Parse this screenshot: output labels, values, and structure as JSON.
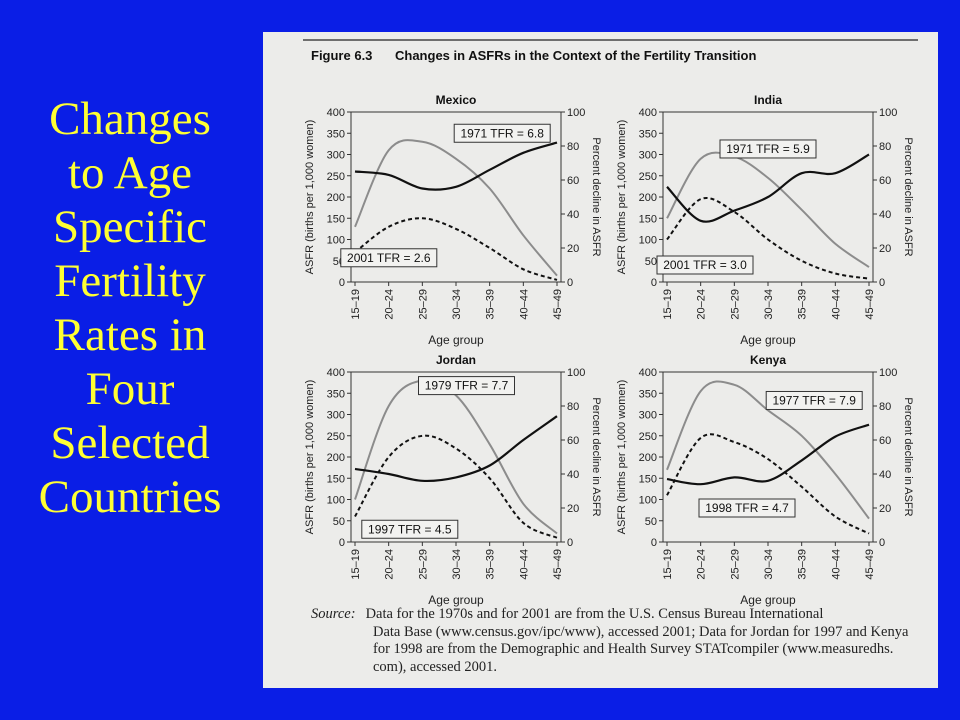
{
  "slide_title_lines": [
    "Changes",
    "to Age",
    "Specific",
    "Fertility",
    "Rates in",
    "Four",
    "Selected",
    "Countries"
  ],
  "figure": {
    "number": "Figure 6.3",
    "caption": "Changes in ASFRs in the Context of the Fertility Transition",
    "source_label": "Source:",
    "source_lines": [
      "Data for the 1970s and for 2001 are from the U.S. Census Bureau International",
      "Data Base (www.census.gov/ipc/www), accessed 2001; Data for Jordan for 1997 and Kenya",
      "for 1998 are from the Demographic and Health Survey STATcompiler (www.measuredhs.",
      "com), accessed 2001."
    ]
  },
  "colors": {
    "slide_bg": "#0a1ee6",
    "title": "#ffff33",
    "early_line": "#8c8c8c",
    "late_line": "#111111",
    "decline_line": "#111111"
  },
  "chart_data": [
    {
      "type": "line",
      "title": "Mexico",
      "xlabel": "Age group",
      "ylabel": "ASFR (births per 1,000 women)",
      "y2label": "Percent decline in ASFR",
      "categories": [
        "15–19",
        "20–24",
        "25–29",
        "30–34",
        "35–39",
        "40–44",
        "45–49"
      ],
      "ylim": [
        0,
        400
      ],
      "yticks": [
        0,
        50,
        100,
        150,
        200,
        250,
        300,
        350,
        400
      ],
      "y2lim": [
        0,
        100
      ],
      "y2ticks": [
        0,
        20,
        40,
        60,
        80,
        100
      ],
      "series": [
        {
          "name": "1971 TFR = 6.8",
          "axis": "left",
          "style": "gray",
          "values": [
            130,
            310,
            330,
            290,
            220,
            110,
            15
          ]
        },
        {
          "name": "2001 TFR = 2.6",
          "axis": "left",
          "style": "dashed",
          "values": [
            70,
            130,
            150,
            125,
            80,
            30,
            5
          ]
        },
        {
          "name": "",
          "axis": "right",
          "style": "solid",
          "values": [
            65,
            63,
            55,
            56,
            66,
            76,
            82
          ]
        }
      ]
    },
    {
      "type": "line",
      "title": "India",
      "xlabel": "Age group",
      "ylabel": "ASFR (births per 1,000 women)",
      "y2label": "Percent decline in ASFR",
      "categories": [
        "15–19",
        "20–24",
        "25–29",
        "30–34",
        "35–39",
        "40–44",
        "45–49"
      ],
      "ylim": [
        0,
        400
      ],
      "yticks": [
        0,
        50,
        100,
        150,
        200,
        250,
        300,
        350,
        400
      ],
      "y2lim": [
        0,
        100
      ],
      "y2ticks": [
        0,
        20,
        40,
        60,
        80,
        100
      ],
      "series": [
        {
          "name": "1971 TFR = 5.9",
          "axis": "left",
          "style": "gray",
          "values": [
            150,
            290,
            295,
            245,
            170,
            90,
            35
          ]
        },
        {
          "name": "2001 TFR = 3.0",
          "axis": "left",
          "style": "dashed",
          "values": [
            100,
            195,
            165,
            100,
            50,
            20,
            8
          ]
        },
        {
          "name": "",
          "axis": "right",
          "style": "solid",
          "values": [
            56,
            36,
            42,
            50,
            64,
            64,
            75
          ]
        }
      ]
    },
    {
      "type": "line",
      "title": "Jordan",
      "xlabel": "Age group",
      "ylabel": "ASFR (births per 1,000 women)",
      "y2label": "Percent decline in ASFR",
      "categories": [
        "15–19",
        "20–24",
        "25–29",
        "30–34",
        "35–39",
        "40–44",
        "45–49"
      ],
      "ylim": [
        0,
        400
      ],
      "yticks": [
        0,
        50,
        100,
        150,
        200,
        250,
        300,
        350,
        400
      ],
      "y2lim": [
        0,
        100
      ],
      "y2ticks": [
        0,
        20,
        40,
        60,
        80,
        100
      ],
      "series": [
        {
          "name": "1979 TFR = 7.7",
          "axis": "left",
          "style": "gray",
          "values": [
            100,
            320,
            380,
            345,
            230,
            90,
            20
          ]
        },
        {
          "name": "1997 TFR = 4.5",
          "axis": "left",
          "style": "dashed",
          "values": [
            60,
            200,
            250,
            220,
            150,
            45,
            10
          ]
        },
        {
          "name": "",
          "axis": "right",
          "style": "solid",
          "values": [
            43,
            40,
            36,
            38,
            45,
            60,
            74
          ]
        }
      ]
    },
    {
      "type": "line",
      "title": "Kenya",
      "xlabel": "Age group",
      "ylabel": "ASFR (births per 1,000 women)",
      "y2label": "Percent decline in ASFR",
      "categories": [
        "15–19",
        "20–24",
        "25–29",
        "30–34",
        "35–39",
        "40–44",
        "45–49"
      ],
      "ylim": [
        0,
        400
      ],
      "yticks": [
        0,
        50,
        100,
        150,
        200,
        250,
        300,
        350,
        400
      ],
      "y2lim": [
        0,
        100
      ],
      "y2ticks": [
        0,
        20,
        40,
        60,
        80,
        100
      ],
      "series": [
        {
          "name": "1977 TFR = 7.9",
          "axis": "left",
          "style": "gray",
          "values": [
            170,
            355,
            370,
            310,
            250,
            160,
            55
          ]
        },
        {
          "name": "1998 TFR = 4.7",
          "axis": "left",
          "style": "dashed",
          "values": [
            110,
            245,
            235,
            195,
            130,
            60,
            20
          ]
        },
        {
          "name": "",
          "axis": "right",
          "style": "solid",
          "values": [
            37,
            34,
            38,
            36,
            48,
            62,
            69
          ]
        }
      ]
    }
  ]
}
